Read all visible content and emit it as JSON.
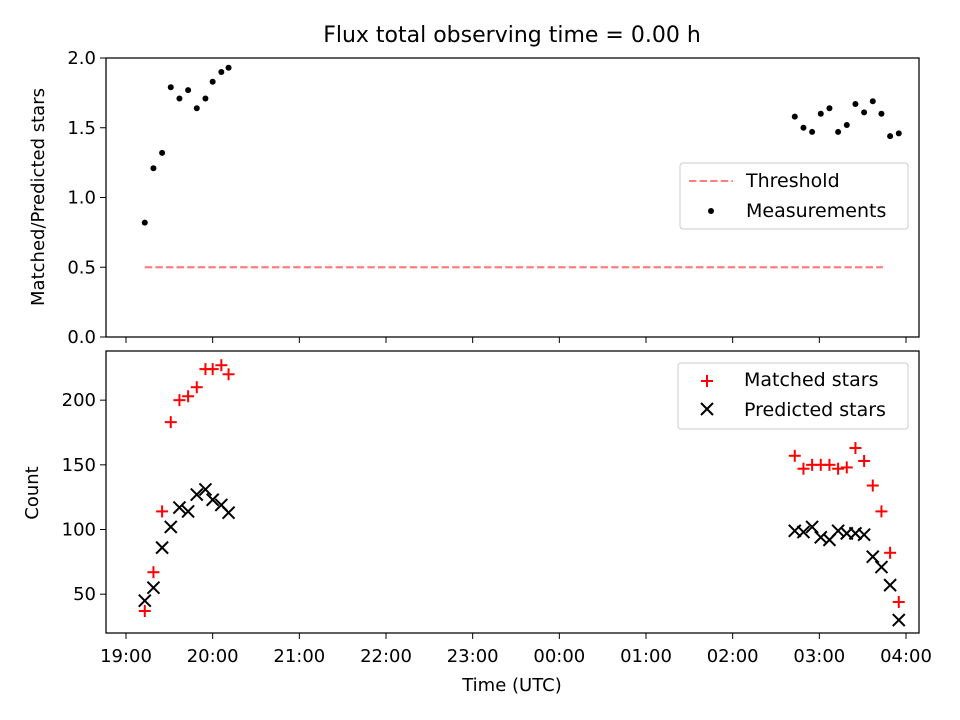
{
  "title": "Flux total observing time = 0.00 h",
  "xlabel": "Time (UTC)",
  "x_tick_labels": [
    "19:00",
    "20:00",
    "21:00",
    "22:00",
    "23:00",
    "00:00",
    "01:00",
    "02:00",
    "03:00",
    "04:00"
  ],
  "colors": {
    "threshold": "#ff7f7f",
    "measurements": "#000000",
    "matched": "#ff0000",
    "predicted": "#000000"
  },
  "chart_data": [
    {
      "type": "scatter",
      "ylabel": "Matched/Predicted stars",
      "xlim": [
        "19:00",
        "04:00"
      ],
      "ylim": [
        0,
        2.0
      ],
      "yticks": [
        0.0,
        0.5,
        1.0,
        1.5,
        2.0
      ],
      "y_tick_labels": [
        "0.0",
        "0.5",
        "1.0",
        "1.5",
        "2.0"
      ],
      "legend_position": "center-right",
      "threshold": {
        "name": "Threshold",
        "style": "dashed",
        "value": 0.5,
        "x_start": "19:13",
        "x_end": "03:44"
      },
      "series": [
        {
          "name": "Measurements",
          "points": [
            [
              "19:13",
              0.82
            ],
            [
              "19:19",
              1.21
            ],
            [
              "19:25",
              1.32
            ],
            [
              "19:31",
              1.79
            ],
            [
              "19:37",
              1.71
            ],
            [
              "19:43",
              1.77
            ],
            [
              "19:49",
              1.64
            ],
            [
              "19:55",
              1.71
            ],
            [
              "20:00",
              1.83
            ],
            [
              "20:06",
              1.9
            ],
            [
              "20:11",
              1.93
            ],
            [
              "02:43",
              1.58
            ],
            [
              "02:49",
              1.5
            ],
            [
              "02:55",
              1.47
            ],
            [
              "03:01",
              1.6
            ],
            [
              "03:07",
              1.64
            ],
            [
              "03:13",
              1.47
            ],
            [
              "03:19",
              1.52
            ],
            [
              "03:25",
              1.67
            ],
            [
              "03:31",
              1.61
            ],
            [
              "03:37",
              1.69
            ],
            [
              "03:43",
              1.6
            ],
            [
              "03:49",
              1.44
            ],
            [
              "03:55",
              1.46
            ]
          ]
        }
      ]
    },
    {
      "type": "scatter",
      "ylabel": "Count",
      "xlabel": "Time (UTC)",
      "xlim": [
        "19:00",
        "04:00"
      ],
      "ylim": [
        20,
        238
      ],
      "yticks": [
        50,
        100,
        150,
        200
      ],
      "y_tick_labels": [
        "50",
        "100",
        "150",
        "200"
      ],
      "legend_position": "upper-right",
      "series": [
        {
          "name": "Matched stars",
          "marker": "plus",
          "points": [
            [
              "19:13",
              37
            ],
            [
              "19:19",
              67
            ],
            [
              "19:25",
              114
            ],
            [
              "19:31",
              183
            ],
            [
              "19:37",
              200
            ],
            [
              "19:43",
              203
            ],
            [
              "19:49",
              210
            ],
            [
              "19:55",
              224
            ],
            [
              "20:00",
              224
            ],
            [
              "20:06",
              227
            ],
            [
              "20:11",
              220
            ],
            [
              "02:43",
              157
            ],
            [
              "02:49",
              147
            ],
            [
              "02:55",
              150
            ],
            [
              "03:01",
              150
            ],
            [
              "03:07",
              150
            ],
            [
              "03:13",
              147
            ],
            [
              "03:19",
              148
            ],
            [
              "03:25",
              163
            ],
            [
              "03:31",
              153
            ],
            [
              "03:37",
              134
            ],
            [
              "03:43",
              114
            ],
            [
              "03:49",
              82
            ],
            [
              "03:55",
              44
            ]
          ]
        },
        {
          "name": "Predicted stars",
          "marker": "x",
          "points": [
            [
              "19:13",
              45
            ],
            [
              "19:19",
              55
            ],
            [
              "19:25",
              86
            ],
            [
              "19:31",
              102
            ],
            [
              "19:37",
              117
            ],
            [
              "19:43",
              114
            ],
            [
              "19:49",
              127
            ],
            [
              "19:55",
              131
            ],
            [
              "20:00",
              123
            ],
            [
              "20:06",
              119
            ],
            [
              "20:11",
              113
            ],
            [
              "02:43",
              99
            ],
            [
              "02:49",
              98
            ],
            [
              "02:55",
              102
            ],
            [
              "03:01",
              94
            ],
            [
              "03:07",
              92
            ],
            [
              "03:13",
              99
            ],
            [
              "03:19",
              97
            ],
            [
              "03:25",
              97
            ],
            [
              "03:31",
              96
            ],
            [
              "03:37",
              79
            ],
            [
              "03:43",
              71
            ],
            [
              "03:49",
              57
            ],
            [
              "03:55",
              30
            ]
          ]
        }
      ]
    }
  ]
}
